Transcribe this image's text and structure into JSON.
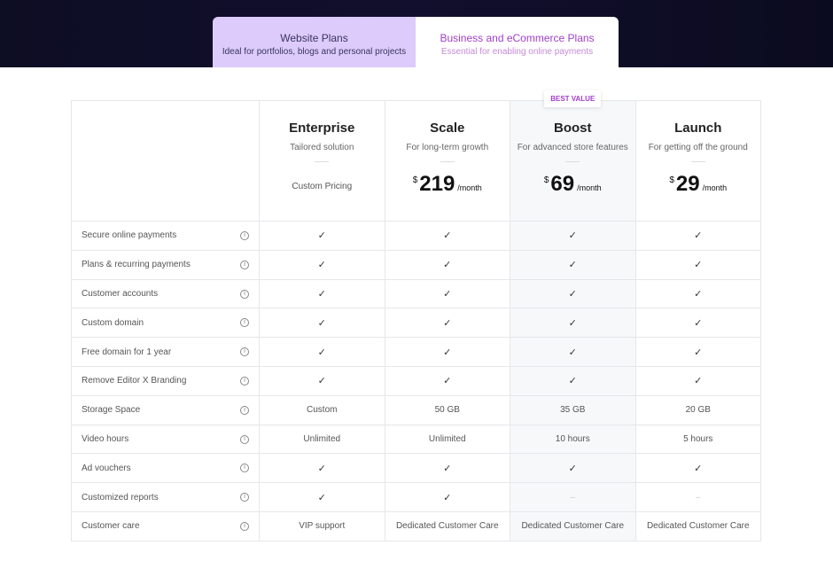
{
  "tabs": [
    {
      "title": "Website Plans",
      "subtitle": "Ideal for portfolios, blogs and personal projects",
      "active": false
    },
    {
      "title": "Business and eCommerce Plans",
      "subtitle": "Essential for enabling online payments",
      "active": true
    }
  ],
  "badge": "BEST VALUE",
  "plans": [
    {
      "name": "Enterprise",
      "tagline": "Tailored solution",
      "price_text": "Custom Pricing"
    },
    {
      "name": "Scale",
      "tagline": "For long-term growth",
      "currency": "$",
      "amount": "219",
      "period": "/month"
    },
    {
      "name": "Boost",
      "tagline": "For advanced store features",
      "currency": "$",
      "amount": "69",
      "period": "/month"
    },
    {
      "name": "Launch",
      "tagline": "For getting off the ground",
      "currency": "$",
      "amount": "29",
      "period": "/month"
    }
  ],
  "icons": {
    "check": "✓",
    "none": "–",
    "info": "i"
  },
  "colors": {
    "accent": "#a13ec9",
    "inactive_tab": "#dccbfb",
    "highlight_column": "#f7f8fa"
  },
  "features": [
    {
      "label": "Secure online payments",
      "values": [
        "check",
        "check",
        "check",
        "check"
      ]
    },
    {
      "label": "Plans & recurring payments",
      "values": [
        "check",
        "check",
        "check",
        "check"
      ]
    },
    {
      "label": "Customer accounts",
      "values": [
        "check",
        "check",
        "check",
        "check"
      ]
    },
    {
      "label": "Custom domain",
      "values": [
        "check",
        "check",
        "check",
        "check"
      ]
    },
    {
      "label": "Free domain for 1 year",
      "values": [
        "check",
        "check",
        "check",
        "check"
      ]
    },
    {
      "label": "Remove Editor X Branding",
      "values": [
        "check",
        "check",
        "check",
        "check"
      ]
    },
    {
      "label": "Storage Space",
      "values": [
        "Custom",
        "50 GB",
        "35 GB",
        "20 GB"
      ]
    },
    {
      "label": "Video hours",
      "values": [
        "Unlimited",
        "Unlimited",
        "10 hours",
        "5 hours"
      ]
    },
    {
      "label": "Ad vouchers",
      "values": [
        "check",
        "check",
        "check",
        "check"
      ]
    },
    {
      "label": "Customized reports",
      "values": [
        "check",
        "check",
        "none",
        "none"
      ]
    },
    {
      "label": "Customer care",
      "values": [
        "VIP support",
        "Dedicated Customer Care",
        "Dedicated Customer Care",
        "Dedicated Customer Care"
      ]
    }
  ]
}
